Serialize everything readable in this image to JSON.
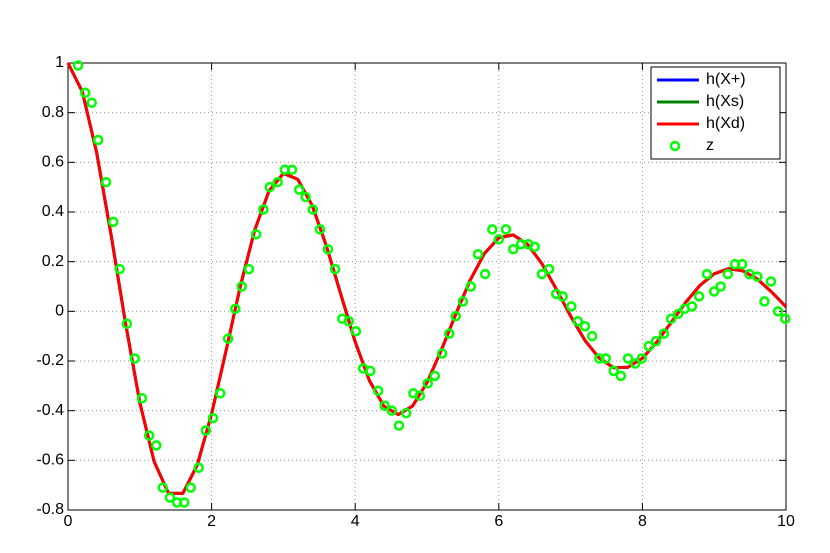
{
  "chart_data": {
    "type": "line",
    "grid": true,
    "legend": "northeast",
    "xlim": [
      0,
      10
    ],
    "xticks": [
      0,
      2,
      4,
      6,
      8,
      10
    ],
    "ylim": [
      -0.8,
      1
    ],
    "yticks": [
      -0.8,
      -0.6,
      -0.4,
      -0.2,
      0,
      0.2,
      0.4,
      0.6,
      0.8,
      1
    ],
    "x": [
      0,
      0.2,
      0.4,
      0.6,
      0.8,
      1,
      1.2,
      1.4,
      1.6,
      1.8,
      2,
      2.2,
      2.4,
      2.6,
      2.8,
      3,
      3.2,
      3.4,
      3.6,
      3.8,
      4,
      4.2,
      4.4,
      4.6,
      4.8,
      5,
      5.2,
      5.4,
      5.6,
      5.8,
      6,
      6.2,
      6.4,
      6.6,
      6.8,
      7,
      7.2,
      7.4,
      7.6,
      7.8,
      8,
      8.2,
      8.4,
      8.6,
      8.8,
      9,
      9.2,
      9.4,
      9.6,
      9.8,
      10
    ],
    "series": [
      {
        "name": "h(X+)",
        "color": "#0000ff",
        "values": [
          1,
          0.884,
          0.638,
          0.308,
          -0.046,
          -0.367,
          -0.605,
          -0.733,
          -0.733,
          -0.619,
          -0.413,
          -0.16,
          0.101,
          0.327,
          0.485,
          0.555,
          0.532,
          0.427,
          0.262,
          0.068,
          -0.123,
          -0.28,
          -0.382,
          -0.416,
          -0.381,
          -0.287,
          -0.156,
          -0.012,
          0.125,
          0.233,
          0.296,
          0.308,
          0.27,
          0.192,
          0.09,
          -0.019,
          -0.117,
          -0.189,
          -0.227,
          -0.225,
          -0.189,
          -0.124,
          -0.045,
          0.035,
          0.104,
          0.151,
          0.172,
          0.163,
          0.13,
          0.078,
          0.018
        ]
      },
      {
        "name": "h(Xs)",
        "color": "#008000",
        "values": [
          1,
          0.884,
          0.638,
          0.308,
          -0.046,
          -0.367,
          -0.605,
          -0.733,
          -0.733,
          -0.619,
          -0.413,
          -0.16,
          0.101,
          0.327,
          0.485,
          0.555,
          0.532,
          0.427,
          0.262,
          0.068,
          -0.123,
          -0.28,
          -0.382,
          -0.416,
          -0.381,
          -0.287,
          -0.156,
          -0.012,
          0.125,
          0.233,
          0.296,
          0.308,
          0.27,
          0.192,
          0.09,
          -0.019,
          -0.117,
          -0.189,
          -0.227,
          -0.225,
          -0.189,
          -0.124,
          -0.045,
          0.035,
          0.104,
          0.151,
          0.172,
          0.163,
          0.13,
          0.078,
          0.018
        ]
      },
      {
        "name": "h(Xd)",
        "color": "#ff0000",
        "values": [
          1,
          0.884,
          0.638,
          0.308,
          -0.046,
          -0.367,
          -0.605,
          -0.733,
          -0.733,
          -0.619,
          -0.413,
          -0.16,
          0.101,
          0.327,
          0.485,
          0.555,
          0.532,
          0.427,
          0.262,
          0.068,
          -0.123,
          -0.28,
          -0.382,
          -0.416,
          -0.381,
          -0.287,
          -0.156,
          -0.012,
          0.125,
          0.233,
          0.296,
          0.308,
          0.27,
          0.192,
          0.09,
          -0.019,
          -0.117,
          -0.189,
          -0.227,
          -0.225,
          -0.189,
          -0.124,
          -0.045,
          0.035,
          0.104,
          0.151,
          0.172,
          0.163,
          0.13,
          0.078,
          0.018
        ]
      },
      {
        "name": "z",
        "type": "scatter",
        "color": "#00ff00",
        "x": [
          0.14,
          0.24,
          0.33,
          0.42,
          0.53,
          0.63,
          0.72,
          0.82,
          0.93,
          1.03,
          1.13,
          1.23,
          1.32,
          1.42,
          1.52,
          1.62,
          1.71,
          1.82,
          1.92,
          2.02,
          2.12,
          2.23,
          2.33,
          2.42,
          2.52,
          2.62,
          2.72,
          2.81,
          2.92,
          3.02,
          3.12,
          3.22,
          3.31,
          3.41,
          3.51,
          3.62,
          3.72,
          3.82,
          3.91,
          4.01,
          4.11,
          4.21,
          4.32,
          4.41,
          4.51,
          4.61,
          4.71,
          4.81,
          4.9,
          5.01,
          5.11,
          5.21,
          5.31,
          5.4,
          5.5,
          5.61,
          5.71,
          5.81,
          5.91,
          6,
          6.1,
          6.2,
          6.31,
          6.41,
          6.5,
          6.6,
          6.7,
          6.8,
          6.89,
          7.01,
          7.1,
          7.2,
          7.3,
          7.4,
          7.49,
          7.6,
          7.7,
          7.8,
          7.9,
          7.99,
          8.09,
          8.19,
          8.3,
          8.4,
          8.5,
          8.59,
          8.69,
          8.79,
          8.9,
          9,
          9.09,
          9.19,
          9.29,
          9.39,
          9.49,
          9.6,
          9.7,
          9.79,
          9.89,
          9.99
        ],
        "values": [
          0.99,
          0.88,
          0.84,
          0.69,
          0.52,
          0.36,
          0.17,
          -0.05,
          -0.19,
          -0.35,
          -0.5,
          -0.54,
          -0.71,
          -0.75,
          -0.77,
          -0.77,
          -0.71,
          -0.63,
          -0.48,
          -0.43,
          -0.33,
          -0.11,
          0.01,
          0.1,
          0.17,
          0.31,
          0.41,
          0.5,
          0.52,
          0.57,
          0.57,
          0.49,
          0.46,
          0.41,
          0.33,
          0.25,
          0.17,
          -0.03,
          -0.04,
          -0.08,
          -0.23,
          -0.24,
          -0.32,
          -0.38,
          -0.4,
          -0.46,
          -0.41,
          -0.33,
          -0.34,
          -0.29,
          -0.26,
          -0.17,
          -0.09,
          -0.02,
          0.04,
          0.1,
          0.23,
          0.15,
          0.33,
          0.29,
          0.33,
          0.25,
          0.27,
          0.27,
          0.26,
          0.15,
          0.17,
          0.07,
          0.06,
          0.02,
          -0.04,
          -0.06,
          -0.1,
          -0.19,
          -0.19,
          -0.24,
          -0.26,
          -0.19,
          -0.21,
          -0.19,
          -0.14,
          -0.12,
          -0.09,
          -0.03,
          -0.01,
          0.01,
          0.02,
          0.06,
          0.15,
          0.08,
          0.1,
          0.15,
          0.19,
          0.19,
          0.15,
          0.14,
          0.04,
          0.12,
          0,
          -0.03
        ]
      }
    ]
  }
}
